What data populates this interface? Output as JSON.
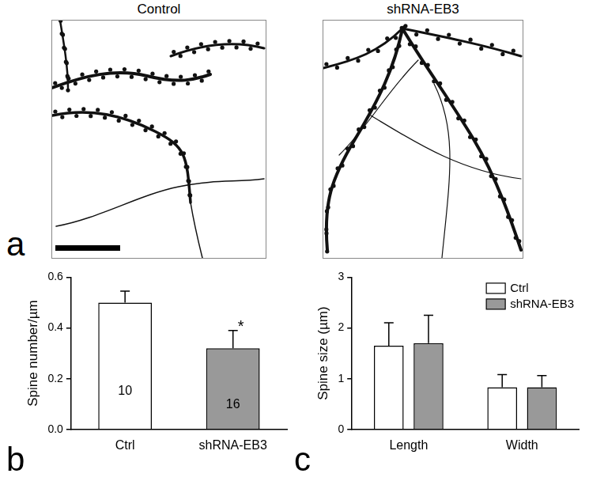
{
  "figure": {
    "panel_labels": [
      "a",
      "b",
      "c"
    ],
    "image_titles": [
      "Control",
      "shRNA-EB3"
    ]
  },
  "chart_data": [
    {
      "type": "bar",
      "categories": [
        "Ctrl",
        "shRNA-EB3"
      ],
      "values": [
        0.5,
        0.32
      ],
      "errors": [
        0.045,
        0.07
      ],
      "colors": [
        "#ffffff",
        "#999999"
      ],
      "sample_sizes": [
        10,
        16
      ],
      "significance": [
        null,
        "*"
      ],
      "ylabel": "Spine number/µm",
      "ylim": [
        0,
        0.6
      ],
      "yticks": [
        {
          "value": 0,
          "label": "0.0"
        },
        0.2,
        0.4,
        0.6
      ],
      "grid": false
    },
    {
      "type": "bar",
      "categories": [
        "Length",
        "Width"
      ],
      "series": [
        {
          "name": "Ctrl",
          "color": "#ffffff",
          "values": [
            1.65,
            0.83
          ],
          "errors": [
            0.45,
            0.25
          ]
        },
        {
          "name": "shRNA-EB3",
          "color": "#999999",
          "values": [
            1.7,
            0.83
          ],
          "errors": [
            0.55,
            0.23
          ]
        }
      ],
      "ylabel": "Spine size (µm)",
      "ylim": [
        0,
        3
      ],
      "yticks": [
        0,
        1,
        2,
        3
      ],
      "grid": false,
      "legend": "upper right"
    }
  ]
}
